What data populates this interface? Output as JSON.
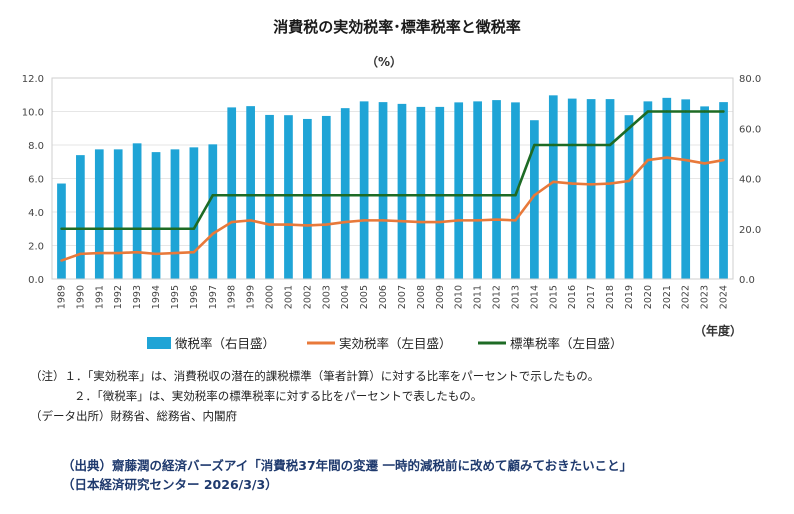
{
  "chart_data": {
    "type": "bar",
    "title": "消費税の実効税率･標準税率と徴税率",
    "unit_label": "（%）",
    "x_unit_label": "（年度）",
    "categories": [
      "1989",
      "1990",
      "1991",
      "1992",
      "1993",
      "1994",
      "1995",
      "1996",
      "1997",
      "1998",
      "1999",
      "2000",
      "2001",
      "2002",
      "2003",
      "2004",
      "2005",
      "2006",
      "2007",
      "2008",
      "2009",
      "2010",
      "2011",
      "2012",
      "2013",
      "2014",
      "2015",
      "2016",
      "2017",
      "2018",
      "2019",
      "2020",
      "2021",
      "2022",
      "2023",
      "2024"
    ],
    "y_left": {
      "ylim": [
        0,
        12
      ],
      "ticks": [
        "0.0",
        "2.0",
        "4.0",
        "6.0",
        "8.0",
        "10.0",
        "12.0"
      ]
    },
    "y_right": {
      "ylim": [
        0,
        80
      ],
      "ticks": [
        "0.0",
        "20.0",
        "40.0",
        "60.0",
        "80.0"
      ]
    },
    "series": [
      {
        "name": "徴税率（右目盛）",
        "type": "bar",
        "axis": "right",
        "color": "#1fa4d6",
        "values": [
          38,
          49.3,
          51.6,
          51.6,
          54,
          50.5,
          51.6,
          52.4,
          53.6,
          68.3,
          68.8,
          65.3,
          65.2,
          63.7,
          64.9,
          68,
          70.7,
          70.4,
          69.7,
          68.5,
          68.5,
          70.3,
          70.7,
          71.2,
          70.3,
          63.2,
          73.1,
          71.8,
          71.6,
          71.6,
          65.2,
          70.7,
          72.1,
          71.5,
          68.7,
          70.4
        ]
      },
      {
        "name": "実効税率（左目盛）",
        "type": "line",
        "axis": "left",
        "color": "#e8793a",
        "values": [
          1.1,
          1.5,
          1.55,
          1.55,
          1.6,
          1.5,
          1.55,
          1.6,
          2.7,
          3.4,
          3.5,
          3.25,
          3.25,
          3.2,
          3.25,
          3.4,
          3.5,
          3.5,
          3.45,
          3.4,
          3.4,
          3.5,
          3.5,
          3.55,
          3.5,
          5.0,
          5.8,
          5.7,
          5.65,
          5.7,
          5.85,
          7.1,
          7.25,
          7.1,
          6.9,
          7.1
        ]
      },
      {
        "name": "標準税率（左目盛）",
        "type": "line",
        "axis": "left",
        "color": "#1e6b25",
        "values": [
          3,
          3,
          3,
          3,
          3,
          3,
          3,
          3,
          5,
          5,
          5,
          5,
          5,
          5,
          5,
          5,
          5,
          5,
          5,
          5,
          5,
          5,
          5,
          5,
          5,
          8,
          8,
          8,
          8,
          8,
          9,
          10,
          10,
          10,
          10,
          10
        ]
      }
    ],
    "legend_placement": "bottom"
  },
  "notes": {
    "line1": "（注）１．「実効税率」は、消費税収の潜在的課税標準（筆者計算）に対する比率をパーセントで示したもの。",
    "line2": "２．「徴税率」は、実効税率の標準税率に対する比をパーセントで表したもの。",
    "line3": "（データ出所）財務省、総務省、内閣府"
  },
  "source": {
    "line1": "（出典）齋藤潤の経済バーズアイ「消費税37年間の変遷 一時的減税前に改めて顧みておきたいこと」",
    "line2": "（日本経済研究センター 2026/3/3）"
  }
}
